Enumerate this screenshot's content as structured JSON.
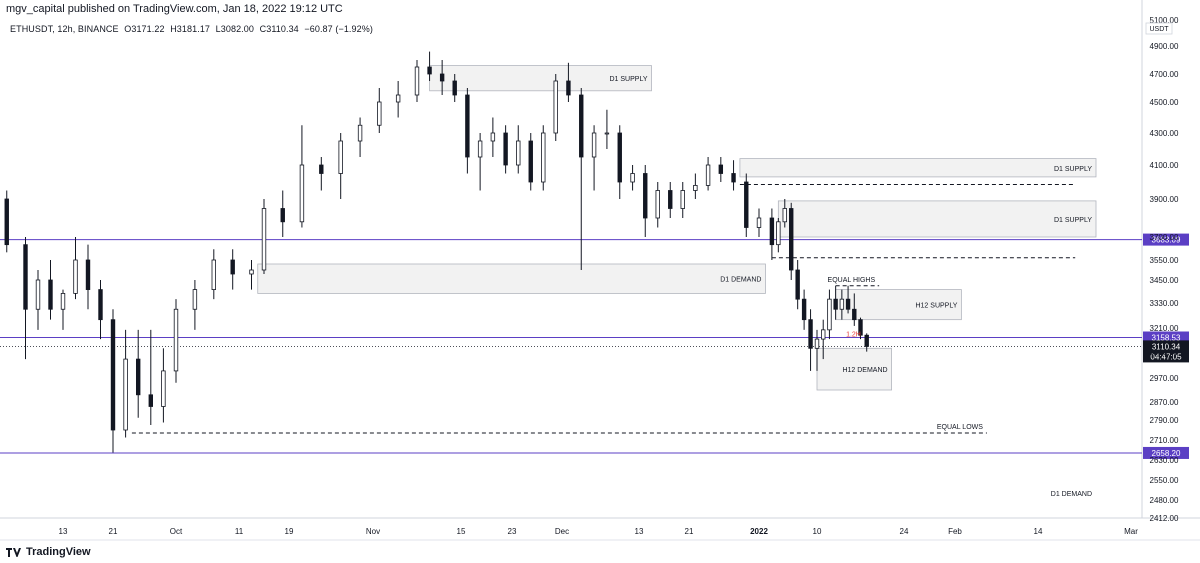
{
  "header": {
    "published": "mgv_capital published on TradingView.com, Jan 18, 2022 19:12 UTC"
  },
  "legend": {
    "symbol": "ETHUSDT, 12h, BINANCE",
    "open": "O3171.22",
    "high": "H3181.17",
    "low": "L3082.00",
    "close": "C3110.34",
    "change": "−60.87 (−1.92%)"
  },
  "footer": {
    "brand": "TradingView"
  },
  "colors": {
    "up": "#131722",
    "down": "#131722",
    "purple": "#5b3fc4",
    "zone_fill": "#f2f2f2",
    "zone_stroke": "#b2b5be"
  },
  "chart_data": {
    "type": "candlestick",
    "currency": "USDT",
    "y_ticks": [
      "5100.00",
      "4900.00",
      "4700.00",
      "4500.00",
      "4300.00",
      "4100.00",
      "3900.00",
      "3700.00",
      "3550.00",
      "3450.00",
      "3330.00",
      "3210.00",
      "3080.00",
      "2970.00",
      "2870.00",
      "2790.00",
      "2710.00",
      "2630.00",
      "2550.00",
      "2480.00",
      "2412.00"
    ],
    "x_ticks": [
      "13",
      "21",
      "Oct",
      "11",
      "19",
      "Nov",
      "15",
      "23",
      "Dec",
      "13",
      "21",
      "2022",
      "10",
      "24",
      "Feb",
      "14",
      "Mar"
    ],
    "price_labels": [
      {
        "text": "3683.09",
        "value": 3683.09
      },
      {
        "text": "3158.53",
        "value": 3158.53
      },
      {
        "text": "2658.20",
        "value": 2658.2
      }
    ],
    "current": {
      "price": "3110.34",
      "countdown": "04:47:05",
      "value": 3110.34
    },
    "zones": [
      {
        "label": "D1 SUPPLY",
        "from": "Nov 10",
        "to": "Dec 15",
        "top": 4760,
        "bottom": 4580
      },
      {
        "label": "D1 SUPPLY",
        "from": "Dec 29",
        "to": "Mar 1",
        "top": 4140,
        "bottom": 4030
      },
      {
        "label": "D1 SUPPLY",
        "from": "Jan 4",
        "to": "Mar 1",
        "top": 3890,
        "bottom": 3700
      },
      {
        "label": "D1 DEMAND",
        "from": "Oct 14",
        "to": "Jan 2",
        "top": 3530,
        "bottom": 3380
      },
      {
        "label": "EQUAL HIGHS",
        "from": "Jan 13",
        "to": "Jan 20",
        "top": 3420,
        "bottom": 3420
      },
      {
        "label": "H12 SUPPLY",
        "from": "Jan 13",
        "to": "Feb 2",
        "top": 3400,
        "bottom": 3250
      },
      {
        "label": "H12 DEMAND",
        "from": "Jan 10",
        "to": "Jan 22",
        "top": 3100,
        "bottom": 2920
      },
      {
        "label": "EQUAL LOWS",
        "from": "Sep 24",
        "to": "Feb 6",
        "top": 2738,
        "bottom": 2738
      },
      {
        "label": "D1 DEMAND",
        "from": "Aug 30",
        "to": "Mar 1",
        "top": 2622,
        "bottom": 2390
      }
    ],
    "annotations": [
      {
        "text": "1.2H",
        "date": "Jan 15",
        "value": 3180
      }
    ],
    "ohlc": [
      {
        "date": "Sep 01",
        "o": 3850,
        "h": 3960,
        "l": 3800,
        "c": 3900
      },
      {
        "date": "Sep 04",
        "o": 3900,
        "h": 3950,
        "l": 3600,
        "c": 3650
      },
      {
        "date": "Sep 07",
        "o": 3650,
        "h": 3700,
        "l": 3050,
        "c": 3300
      },
      {
        "date": "Sep 09",
        "o": 3300,
        "h": 3500,
        "l": 3200,
        "c": 3450
      },
      {
        "date": "Sep 11",
        "o": 3450,
        "h": 3550,
        "l": 3250,
        "c": 3300
      },
      {
        "date": "Sep 13",
        "o": 3300,
        "h": 3400,
        "l": 3200,
        "c": 3380
      },
      {
        "date": "Sep 15",
        "o": 3380,
        "h": 3700,
        "l": 3350,
        "c": 3550
      },
      {
        "date": "Sep 17",
        "o": 3550,
        "h": 3650,
        "l": 3300,
        "c": 3400
      },
      {
        "date": "Sep 19",
        "o": 3400,
        "h": 3450,
        "l": 3150,
        "c": 3250
      },
      {
        "date": "Sep 21",
        "o": 3250,
        "h": 3300,
        "l": 2660,
        "c": 2750
      },
      {
        "date": "Sep 23",
        "o": 2750,
        "h": 3200,
        "l": 2720,
        "c": 3050
      },
      {
        "date": "Sep 25",
        "o": 3050,
        "h": 3200,
        "l": 2800,
        "c": 2900
      },
      {
        "date": "Sep 27",
        "o": 2900,
        "h": 3200,
        "l": 2770,
        "c": 2850
      },
      {
        "date": "Sep 29",
        "o": 2850,
        "h": 3100,
        "l": 2780,
        "c": 3000
      },
      {
        "date": "Oct 01",
        "o": 3000,
        "h": 3350,
        "l": 2950,
        "c": 3300
      },
      {
        "date": "Oct 04",
        "o": 3300,
        "h": 3450,
        "l": 3200,
        "c": 3400
      },
      {
        "date": "Oct 07",
        "o": 3400,
        "h": 3620,
        "l": 3350,
        "c": 3550
      },
      {
        "date": "Oct 10",
        "o": 3550,
        "h": 3620,
        "l": 3400,
        "c": 3480
      },
      {
        "date": "Oct 13",
        "o": 3480,
        "h": 3550,
        "l": 3400,
        "c": 3500
      },
      {
        "date": "Oct 15",
        "o": 3500,
        "h": 3900,
        "l": 3480,
        "c": 3850
      },
      {
        "date": "Oct 18",
        "o": 3850,
        "h": 3950,
        "l": 3700,
        "c": 3780
      },
      {
        "date": "Oct 21",
        "o": 3780,
        "h": 4350,
        "l": 3750,
        "c": 4100
      },
      {
        "date": "Oct 24",
        "o": 4100,
        "h": 4150,
        "l": 3950,
        "c": 4050
      },
      {
        "date": "Oct 27",
        "o": 4050,
        "h": 4300,
        "l": 3900,
        "c": 4250
      },
      {
        "date": "Oct 30",
        "o": 4250,
        "h": 4400,
        "l": 4150,
        "c": 4350
      },
      {
        "date": "Nov 02",
        "o": 4350,
        "h": 4600,
        "l": 4300,
        "c": 4500
      },
      {
        "date": "Nov 05",
        "o": 4500,
        "h": 4650,
        "l": 4400,
        "c": 4550
      },
      {
        "date": "Nov 08",
        "o": 4550,
        "h": 4800,
        "l": 4500,
        "c": 4750
      },
      {
        "date": "Nov 10",
        "o": 4750,
        "h": 4860,
        "l": 4650,
        "c": 4700
      },
      {
        "date": "Nov 12",
        "o": 4700,
        "h": 4800,
        "l": 4550,
        "c": 4650
      },
      {
        "date": "Nov 14",
        "o": 4650,
        "h": 4700,
        "l": 4500,
        "c": 4550
      },
      {
        "date": "Nov 16",
        "o": 4550,
        "h": 4600,
        "l": 4050,
        "c": 4150
      },
      {
        "date": "Nov 18",
        "o": 4150,
        "h": 4300,
        "l": 3950,
        "c": 4250
      },
      {
        "date": "Nov 20",
        "o": 4250,
        "h": 4400,
        "l": 4150,
        "c": 4300
      },
      {
        "date": "Nov 22",
        "o": 4300,
        "h": 4350,
        "l": 4050,
        "c": 4100
      },
      {
        "date": "Nov 24",
        "o": 4100,
        "h": 4350,
        "l": 4050,
        "c": 4250
      },
      {
        "date": "Nov 26",
        "o": 4250,
        "h": 4300,
        "l": 3950,
        "c": 4000
      },
      {
        "date": "Nov 28",
        "o": 4000,
        "h": 4350,
        "l": 3950,
        "c": 4300
      },
      {
        "date": "Nov 30",
        "o": 4300,
        "h": 4700,
        "l": 4250,
        "c": 4650
      },
      {
        "date": "Dec 02",
        "o": 4650,
        "h": 4780,
        "l": 4500,
        "c": 4550
      },
      {
        "date": "Dec 04",
        "o": 4550,
        "h": 4600,
        "l": 3500,
        "c": 4150
      },
      {
        "date": "Dec 06",
        "o": 4150,
        "h": 4350,
        "l": 3950,
        "c": 4300
      },
      {
        "date": "Dec 08",
        "o": 4300,
        "h": 4450,
        "l": 4200,
        "c": 4300
      },
      {
        "date": "Dec 10",
        "o": 4300,
        "h": 4350,
        "l": 3900,
        "c": 4000
      },
      {
        "date": "Dec 12",
        "o": 4000,
        "h": 4100,
        "l": 3950,
        "c": 4050
      },
      {
        "date": "Dec 14",
        "o": 4050,
        "h": 4100,
        "l": 3700,
        "c": 3800
      },
      {
        "date": "Dec 16",
        "o": 3800,
        "h": 4000,
        "l": 3750,
        "c": 3950
      },
      {
        "date": "Dec 18",
        "o": 3950,
        "h": 4000,
        "l": 3800,
        "c": 3850
      },
      {
        "date": "Dec 20",
        "o": 3850,
        "h": 4000,
        "l": 3800,
        "c": 3950
      },
      {
        "date": "Dec 22",
        "o": 3950,
        "h": 4050,
        "l": 3900,
        "c": 3980
      },
      {
        "date": "Dec 24",
        "o": 3980,
        "h": 4150,
        "l": 3950,
        "c": 4100
      },
      {
        "date": "Dec 26",
        "o": 4100,
        "h": 4150,
        "l": 4000,
        "c": 4050
      },
      {
        "date": "Dec 28",
        "o": 4050,
        "h": 4130,
        "l": 3950,
        "c": 4000
      },
      {
        "date": "Dec 30",
        "o": 4000,
        "h": 4050,
        "l": 3700,
        "c": 3750
      },
      {
        "date": "Jan 01",
        "o": 3750,
        "h": 3850,
        "l": 3700,
        "c": 3800
      },
      {
        "date": "Jan 03",
        "o": 3800,
        "h": 3850,
        "l": 3550,
        "c": 3650
      },
      {
        "date": "Jan 04",
        "o": 3650,
        "h": 3800,
        "l": 3600,
        "c": 3780
      },
      {
        "date": "Jan 05",
        "o": 3780,
        "h": 3900,
        "l": 3750,
        "c": 3850
      },
      {
        "date": "Jan 06",
        "o": 3850,
        "h": 3880,
        "l": 3450,
        "c": 3500
      },
      {
        "date": "Jan 07",
        "o": 3500,
        "h": 3550,
        "l": 3300,
        "c": 3350
      },
      {
        "date": "Jan 08",
        "o": 3350,
        "h": 3400,
        "l": 3200,
        "c": 3250
      },
      {
        "date": "Jan 09",
        "o": 3250,
        "h": 3300,
        "l": 3000,
        "c": 3100
      },
      {
        "date": "Jan 10",
        "o": 3100,
        "h": 3200,
        "l": 3000,
        "c": 3150
      },
      {
        "date": "Jan 11",
        "o": 3150,
        "h": 3250,
        "l": 3050,
        "c": 3200
      },
      {
        "date": "Jan 12",
        "o": 3200,
        "h": 3400,
        "l": 3150,
        "c": 3350
      },
      {
        "date": "Jan 13",
        "o": 3350,
        "h": 3420,
        "l": 3250,
        "c": 3300
      },
      {
        "date": "Jan 14",
        "o": 3300,
        "h": 3400,
        "l": 3250,
        "c": 3350
      },
      {
        "date": "Jan 15",
        "o": 3350,
        "h": 3420,
        "l": 3280,
        "c": 3300
      },
      {
        "date": "Jan 16",
        "o": 3300,
        "h": 3380,
        "l": 3220,
        "c": 3250
      },
      {
        "date": "Jan 17",
        "o": 3250,
        "h": 3260,
        "l": 3150,
        "c": 3171
      },
      {
        "date": "Jan 18",
        "o": 3171,
        "h": 3181,
        "l": 3082,
        "c": 3110
      }
    ]
  }
}
